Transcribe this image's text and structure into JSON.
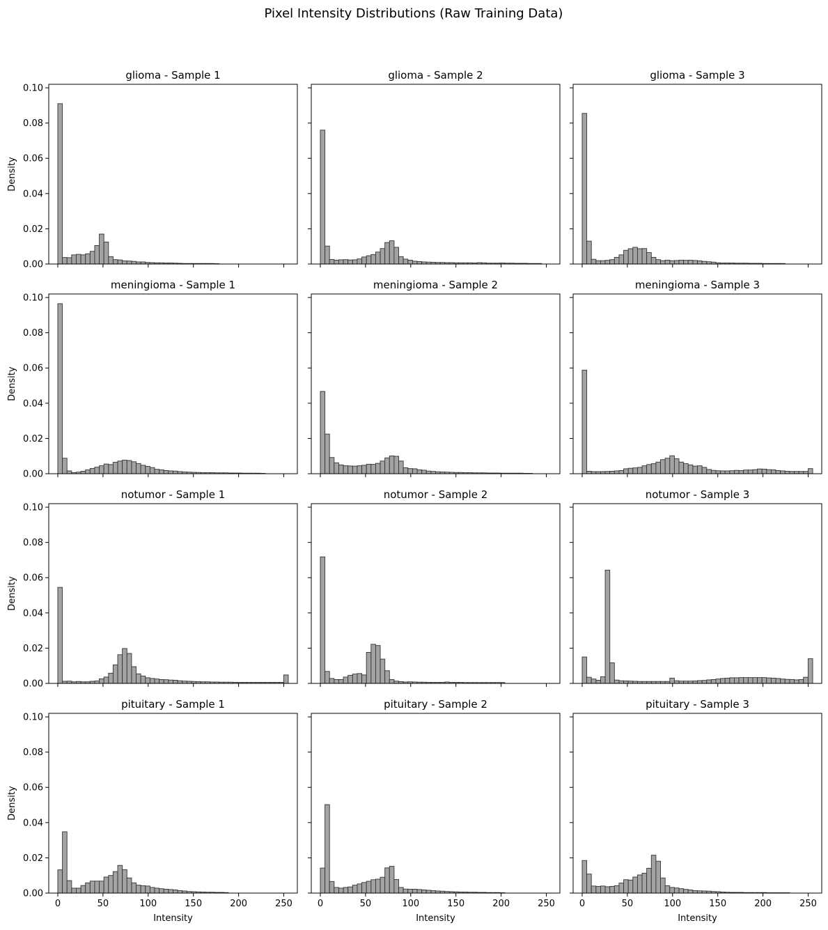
{
  "figure": {
    "title": "Pixel Intensity Distributions (Raw Training Data)",
    "bar_fill": "#a3a3a3",
    "bar_edge": "#333333"
  },
  "chart_data": [
    {
      "type": "bar",
      "title": "glioma - Sample 1",
      "xlabel": "",
      "ylabel": "Density",
      "xlim": [
        -10,
        265
      ],
      "ylim": [
        0,
        0.102
      ],
      "xticks": [
        0,
        50,
        100,
        150,
        200,
        250
      ],
      "yticks": [
        0.0,
        0.02,
        0.04,
        0.06,
        0.08,
        0.1
      ],
      "bin_start": 0,
      "bin_width": 5.1,
      "values": [
        0.091,
        0.0037,
        0.0036,
        0.0052,
        0.0055,
        0.0052,
        0.0058,
        0.0072,
        0.0105,
        0.017,
        0.0125,
        0.0042,
        0.0025,
        0.0023,
        0.0018,
        0.0017,
        0.0015,
        0.0012,
        0.0012,
        0.0009,
        0.0008,
        0.0007,
        0.0007,
        0.0006,
        0.0006,
        0.0005,
        0.0004,
        0.0003,
        0.0003,
        0.0003,
        0.0003,
        0.0003,
        0.0003,
        0.0003,
        0.0002,
        0,
        0,
        0,
        0,
        0,
        0,
        0,
        0,
        0,
        0,
        0,
        0,
        0,
        0,
        0
      ]
    },
    {
      "type": "bar",
      "title": "glioma - Sample 2",
      "xlabel": "",
      "ylabel": "",
      "xlim": [
        -10,
        265
      ],
      "ylim": [
        0,
        0.102
      ],
      "xticks": [
        0,
        50,
        100,
        150,
        200,
        250
      ],
      "yticks": [
        0.0,
        0.02,
        0.04,
        0.06,
        0.08,
        0.1
      ],
      "bin_start": 0,
      "bin_width": 5.1,
      "values": [
        0.076,
        0.0102,
        0.0026,
        0.0022,
        0.0024,
        0.0025,
        0.0023,
        0.0024,
        0.0029,
        0.004,
        0.0047,
        0.0054,
        0.0068,
        0.0088,
        0.0122,
        0.0132,
        0.0095,
        0.0042,
        0.0028,
        0.0022,
        0.0016,
        0.0014,
        0.0012,
        0.0011,
        0.001,
        0.0009,
        0.0009,
        0.0008,
        0.0008,
        0.0007,
        0.0007,
        0.0007,
        0.0007,
        0.0006,
        0.0008,
        0.0007,
        0.0005,
        0.0005,
        0.0005,
        0.0006,
        0.0005,
        0.0005,
        0.0004,
        0.0004,
        0.0004,
        0.0003,
        0.0003,
        0.0003,
        0,
        0
      ]
    },
    {
      "type": "bar",
      "title": "glioma - Sample 3",
      "xlabel": "",
      "ylabel": "",
      "xlim": [
        -10,
        265
      ],
      "ylim": [
        0,
        0.102
      ],
      "xticks": [
        0,
        50,
        100,
        150,
        200,
        250
      ],
      "yticks": [
        0.0,
        0.02,
        0.04,
        0.06,
        0.08,
        0.1
      ],
      "bin_start": 0,
      "bin_width": 5.1,
      "values": [
        0.0855,
        0.013,
        0.0027,
        0.0019,
        0.0019,
        0.0021,
        0.0025,
        0.0038,
        0.0052,
        0.0078,
        0.0087,
        0.0095,
        0.0087,
        0.0088,
        0.0065,
        0.0038,
        0.0025,
        0.0019,
        0.0022,
        0.0019,
        0.002,
        0.0022,
        0.0021,
        0.0022,
        0.002,
        0.0018,
        0.0015,
        0.0013,
        0.0011,
        0.0007,
        0.0006,
        0.0006,
        0.0006,
        0.0005,
        0.0005,
        0.0005,
        0.0004,
        0.0004,
        0.0004,
        0.0003,
        0.0003,
        0.0003,
        0.0003,
        0.0003,
        0,
        0,
        0,
        0,
        0,
        0
      ]
    },
    {
      "type": "bar",
      "title": "meningioma - Sample 1",
      "xlabel": "",
      "ylabel": "Density",
      "xlim": [
        -10,
        265
      ],
      "ylim": [
        0,
        0.102
      ],
      "xticks": [
        0,
        50,
        100,
        150,
        200,
        250
      ],
      "yticks": [
        0.0,
        0.02,
        0.04,
        0.06,
        0.08,
        0.1
      ],
      "bin_start": 0,
      "bin_width": 5.1,
      "values": [
        0.0965,
        0.0088,
        0.0016,
        0.0006,
        0.0009,
        0.0014,
        0.0022,
        0.003,
        0.0037,
        0.0045,
        0.0055,
        0.0052,
        0.0065,
        0.0072,
        0.0077,
        0.0075,
        0.0068,
        0.0058,
        0.0048,
        0.0042,
        0.0035,
        0.0025,
        0.0022,
        0.0018,
        0.0016,
        0.0015,
        0.0012,
        0.001,
        0.0009,
        0.0008,
        0.0007,
        0.0006,
        0.0006,
        0.0006,
        0.0005,
        0.0005,
        0.0005,
        0.0004,
        0.0004,
        0.0004,
        0.0003,
        0.0003,
        0.0003,
        0.0003,
        0.0002,
        0,
        0,
        0,
        0,
        0
      ]
    },
    {
      "type": "bar",
      "title": "meningioma - Sample 2",
      "xlabel": "",
      "ylabel": "",
      "xlim": [
        -10,
        265
      ],
      "ylim": [
        0,
        0.102
      ],
      "xticks": [
        0,
        50,
        100,
        150,
        200,
        250
      ],
      "yticks": [
        0.0,
        0.02,
        0.04,
        0.06,
        0.08,
        0.1
      ],
      "bin_start": 0,
      "bin_width": 5.1,
      "values": [
        0.0467,
        0.0225,
        0.0092,
        0.0062,
        0.005,
        0.0045,
        0.0044,
        0.0043,
        0.0045,
        0.0048,
        0.0054,
        0.0053,
        0.0059,
        0.0072,
        0.009,
        0.0101,
        0.0099,
        0.0072,
        0.0034,
        0.0029,
        0.0028,
        0.0022,
        0.002,
        0.0015,
        0.0013,
        0.0011,
        0.001,
        0.0009,
        0.0008,
        0.0007,
        0.0007,
        0.0006,
        0.0006,
        0.0005,
        0.0005,
        0.0005,
        0.0004,
        0.0004,
        0.0004,
        0.0003,
        0.0003,
        0.0003,
        0.0003,
        0.0003,
        0.0002,
        0.0002,
        0,
        0,
        0,
        0
      ]
    },
    {
      "type": "bar",
      "title": "meningioma - Sample 3",
      "xlabel": "",
      "ylabel": "",
      "xlim": [
        -10,
        265
      ],
      "ylim": [
        0,
        0.102
      ],
      "xticks": [
        0,
        50,
        100,
        150,
        200,
        250
      ],
      "yticks": [
        0.0,
        0.02,
        0.04,
        0.06,
        0.08,
        0.1
      ],
      "bin_start": 0,
      "bin_width": 5.1,
      "values": [
        0.0588,
        0.0014,
        0.0012,
        0.0012,
        0.0012,
        0.0013,
        0.0014,
        0.0016,
        0.0018,
        0.0028,
        0.0031,
        0.0033,
        0.0036,
        0.0045,
        0.0052,
        0.0057,
        0.0066,
        0.008,
        0.0088,
        0.0102,
        0.0085,
        0.0066,
        0.0057,
        0.005,
        0.0043,
        0.0045,
        0.0036,
        0.0024,
        0.0019,
        0.0017,
        0.0016,
        0.0016,
        0.0017,
        0.0019,
        0.0018,
        0.0021,
        0.0021,
        0.0023,
        0.0027,
        0.0026,
        0.0023,
        0.0022,
        0.0018,
        0.0016,
        0.0014,
        0.0013,
        0.0013,
        0.0013,
        0.0013,
        0.0029
      ]
    },
    {
      "type": "bar",
      "title": "notumor - Sample 1",
      "xlabel": "",
      "ylabel": "Density",
      "xlim": [
        -10,
        265
      ],
      "ylim": [
        0,
        0.102
      ],
      "xticks": [
        0,
        50,
        100,
        150,
        200,
        250
      ],
      "yticks": [
        0.0,
        0.02,
        0.04,
        0.06,
        0.08,
        0.1
      ],
      "bin_start": 0,
      "bin_width": 5.1,
      "values": [
        0.0545,
        0.0012,
        0.0013,
        0.0009,
        0.0011,
        0.0009,
        0.0009,
        0.0012,
        0.0014,
        0.0026,
        0.0036,
        0.0058,
        0.0105,
        0.0163,
        0.0198,
        0.017,
        0.0095,
        0.0054,
        0.0042,
        0.0032,
        0.0028,
        0.0025,
        0.0022,
        0.0021,
        0.0019,
        0.0018,
        0.0015,
        0.0013,
        0.0012,
        0.0011,
        0.001,
        0.0009,
        0.0009,
        0.0008,
        0.0008,
        0.0007,
        0.0007,
        0.0007,
        0.0006,
        0.0006,
        0.0006,
        0.0006,
        0.0006,
        0.0006,
        0.0006,
        0.0006,
        0.0006,
        0.0006,
        0.0006,
        0.0048
      ]
    },
    {
      "type": "bar",
      "title": "notumor - Sample 2",
      "xlabel": "",
      "ylabel": "",
      "xlim": [
        -10,
        265
      ],
      "ylim": [
        0,
        0.102
      ],
      "xticks": [
        0,
        50,
        100,
        150,
        200,
        250
      ],
      "yticks": [
        0.0,
        0.02,
        0.04,
        0.06,
        0.08,
        0.1
      ],
      "bin_start": 0,
      "bin_width": 5.1,
      "values": [
        0.0718,
        0.0068,
        0.0028,
        0.0022,
        0.0022,
        0.0036,
        0.0046,
        0.0053,
        0.0056,
        0.0048,
        0.0176,
        0.0222,
        0.0215,
        0.0138,
        0.0072,
        0.0022,
        0.0013,
        0.001,
        0.0008,
        0.0009,
        0.0008,
        0.0007,
        0.0007,
        0.0006,
        0.0006,
        0.0006,
        0.0006,
        0.0008,
        0.0006,
        0.0006,
        0.0006,
        0.0005,
        0.0005,
        0.0005,
        0.0005,
        0.0005,
        0.0005,
        0.0005,
        0.0005,
        0.0005,
        0,
        0,
        0,
        0,
        0,
        0,
        0,
        0,
        0,
        0
      ]
    },
    {
      "type": "bar",
      "title": "notumor - Sample 3",
      "xlabel": "",
      "ylabel": "",
      "xlim": [
        -10,
        265
      ],
      "ylim": [
        0,
        0.102
      ],
      "xticks": [
        0,
        50,
        100,
        150,
        200,
        250
      ],
      "yticks": [
        0.0,
        0.02,
        0.04,
        0.06,
        0.08,
        0.1
      ],
      "bin_start": 0,
      "bin_width": 5.1,
      "values": [
        0.015,
        0.0035,
        0.0025,
        0.0018,
        0.0038,
        0.0643,
        0.0117,
        0.0019,
        0.0015,
        0.0014,
        0.0013,
        0.0012,
        0.0011,
        0.0011,
        0.0011,
        0.0011,
        0.0011,
        0.0011,
        0.0011,
        0.003,
        0.0015,
        0.0013,
        0.0013,
        0.0013,
        0.0014,
        0.0016,
        0.0017,
        0.002,
        0.0022,
        0.0025,
        0.0028,
        0.003,
        0.0032,
        0.0032,
        0.0033,
        0.0033,
        0.0033,
        0.0033,
        0.0033,
        0.0033,
        0.0031,
        0.003,
        0.0028,
        0.0025,
        0.0023,
        0.0022,
        0.002,
        0.0022,
        0.0035,
        0.014
      ]
    },
    {
      "type": "bar",
      "title": "pituitary - Sample 1",
      "xlabel": "Intensity",
      "ylabel": "Density",
      "xlim": [
        -10,
        265
      ],
      "ylim": [
        0,
        0.102
      ],
      "xticks": [
        0,
        50,
        100,
        150,
        200,
        250
      ],
      "yticks": [
        0.0,
        0.02,
        0.04,
        0.06,
        0.08,
        0.1
      ],
      "bin_start": 0,
      "bin_width": 5.1,
      "values": [
        0.0132,
        0.0348,
        0.0071,
        0.0028,
        0.0028,
        0.0043,
        0.0058,
        0.0068,
        0.0068,
        0.0068,
        0.0091,
        0.01,
        0.0122,
        0.0157,
        0.0133,
        0.0086,
        0.0058,
        0.0045,
        0.0042,
        0.004,
        0.0032,
        0.0028,
        0.0025,
        0.0022,
        0.002,
        0.0018,
        0.0014,
        0.0012,
        0.0009,
        0.0008,
        0.0007,
        0.0006,
        0.0005,
        0.0005,
        0.0004,
        0.0004,
        0.0003,
        0,
        0,
        0,
        0,
        0,
        0,
        0,
        0,
        0,
        0,
        0,
        0,
        0
      ]
    },
    {
      "type": "bar",
      "title": "pituitary - Sample 2",
      "xlabel": "Intensity",
      "ylabel": "",
      "xlim": [
        -10,
        265
      ],
      "ylim": [
        0,
        0.102
      ],
      "xticks": [
        0,
        50,
        100,
        150,
        200,
        250
      ],
      "yticks": [
        0.0,
        0.02,
        0.04,
        0.06,
        0.08,
        0.1
      ],
      "bin_start": 0,
      "bin_width": 5.1,
      "values": [
        0.0142,
        0.0502,
        0.0066,
        0.0032,
        0.0028,
        0.0032,
        0.0035,
        0.0045,
        0.0052,
        0.006,
        0.0067,
        0.0076,
        0.0079,
        0.009,
        0.0143,
        0.0152,
        0.0077,
        0.0032,
        0.0023,
        0.0022,
        0.0022,
        0.002,
        0.0018,
        0.0016,
        0.0014,
        0.0012,
        0.0011,
        0.0009,
        0.0008,
        0.0007,
        0.0006,
        0.0006,
        0.0005,
        0.0005,
        0.0004,
        0.0004,
        0.0003,
        0.0003,
        0.0003,
        0.0002,
        0,
        0,
        0,
        0,
        0,
        0,
        0,
        0,
        0,
        0
      ]
    },
    {
      "type": "bar",
      "title": "pituitary - Sample 3",
      "xlabel": "Intensity",
      "ylabel": "",
      "xlim": [
        -10,
        265
      ],
      "ylim": [
        0,
        0.102
      ],
      "xticks": [
        0,
        50,
        100,
        150,
        200,
        250
      ],
      "yticks": [
        0.0,
        0.02,
        0.04,
        0.06,
        0.08,
        0.1
      ],
      "bin_start": 0,
      "bin_width": 5.1,
      "values": [
        0.0185,
        0.0108,
        0.004,
        0.0038,
        0.004,
        0.0036,
        0.0038,
        0.0042,
        0.0057,
        0.0076,
        0.0074,
        0.0091,
        0.0103,
        0.0113,
        0.0141,
        0.0215,
        0.0181,
        0.0086,
        0.0042,
        0.0032,
        0.0029,
        0.0025,
        0.0021,
        0.0018,
        0.0014,
        0.0013,
        0.0012,
        0.0011,
        0.0009,
        0.0008,
        0.0006,
        0.0005,
        0.0004,
        0.0004,
        0.0004,
        0.0003,
        0.0003,
        0.0003,
        0.0003,
        0.0003,
        0.0002,
        0.0002,
        0.0002,
        0.0002,
        0.0002,
        0,
        0,
        0,
        0,
        0
      ]
    }
  ]
}
